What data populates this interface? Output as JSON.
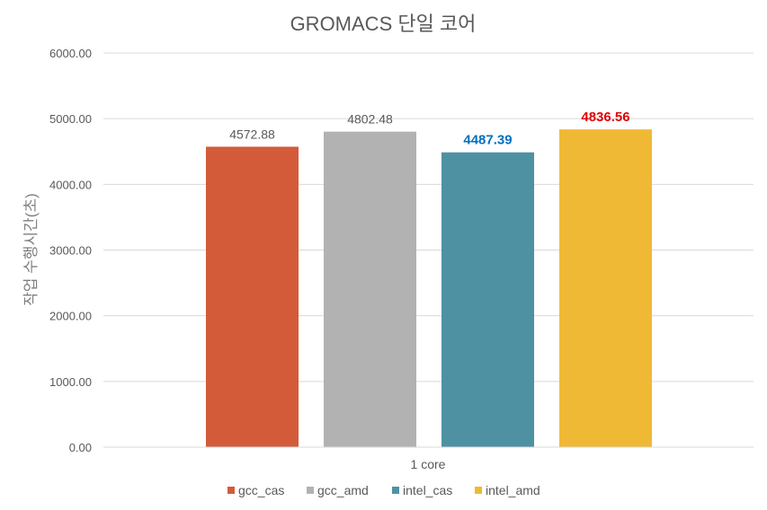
{
  "chart_data": {
    "type": "bar",
    "title": "GROMACS 단일 코어",
    "xlabel": "",
    "ylabel": "작업 수행시간(초)",
    "categories": [
      "1 core"
    ],
    "ylim": [
      0,
      6000
    ],
    "yticks": [
      "0.00",
      "1000.00",
      "2000.00",
      "3000.00",
      "4000.00",
      "5000.00",
      "6000.00"
    ],
    "grid": true,
    "legend_position": "bottom",
    "series": [
      {
        "name": "gcc_cas",
        "values": [
          4572.88
        ],
        "label": "4572.88",
        "color": "#d35b3a",
        "label_color": "#595959",
        "label_bold": false
      },
      {
        "name": "gcc_amd",
        "values": [
          4802.48
        ],
        "label": "4802.48",
        "color": "#b2b2b2",
        "label_color": "#595959",
        "label_bold": false
      },
      {
        "name": "intel_cas",
        "values": [
          4487.39
        ],
        "label": "4487.39",
        "color": "#4e91a2",
        "label_color": "#0070c0",
        "label_bold": true
      },
      {
        "name": "intel_amd",
        "values": [
          4836.56
        ],
        "label": "4836.56",
        "color": "#f0b935",
        "label_color": "#e00000",
        "label_bold": true
      }
    ]
  }
}
